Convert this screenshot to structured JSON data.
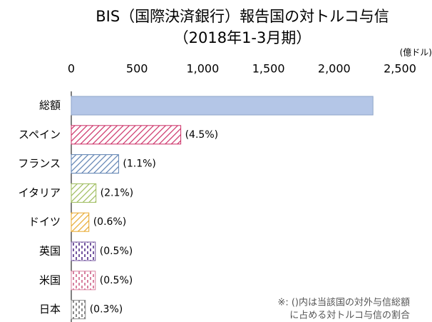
{
  "chart_data": {
    "type": "bar",
    "orientation": "horizontal",
    "title": [
      "BIS（国際決済銀行）報告国の対トルコ与信",
      "（2018年1-3月期）"
    ],
    "unit": "(億ドル)",
    "note": [
      "※: ()内は当該国の対外与信総額",
      "に占める対トルコ与信の割合"
    ],
    "categories": [
      "総額",
      "スペイン",
      "フランス",
      "イタリア",
      "ドイツ",
      "英国",
      "米国",
      "日本"
    ],
    "values": [
      2295,
      833,
      360,
      188,
      134,
      183,
      183,
      107
    ],
    "share_labels": [
      null,
      "(4.5%)",
      "(1.1%)",
      "(2.1%)",
      "(0.6%)",
      "(0.5%)",
      "(0.5%)",
      "(0.3%)"
    ],
    "colors": [
      "#b4c6e7",
      "#cc2f66",
      "#5b7fb0",
      "#9bbb59",
      "#e8a82c",
      "#7457a0",
      "#d8809f",
      "#8a8a8a"
    ],
    "patterns": [
      "solid",
      "diagonal",
      "diagonal",
      "diagonal",
      "diagonal",
      "dashes",
      "dashes",
      "dashes"
    ],
    "xlim": [
      0,
      2500
    ],
    "xticks": [
      0,
      500,
      {
        "value": 1000,
        "label": "1,000"
      },
      {
        "value": 1500,
        "label": "1,500"
      },
      {
        "value": 2000,
        "label": "2,000"
      },
      {
        "value": 2500,
        "label": "2,500"
      }
    ]
  }
}
